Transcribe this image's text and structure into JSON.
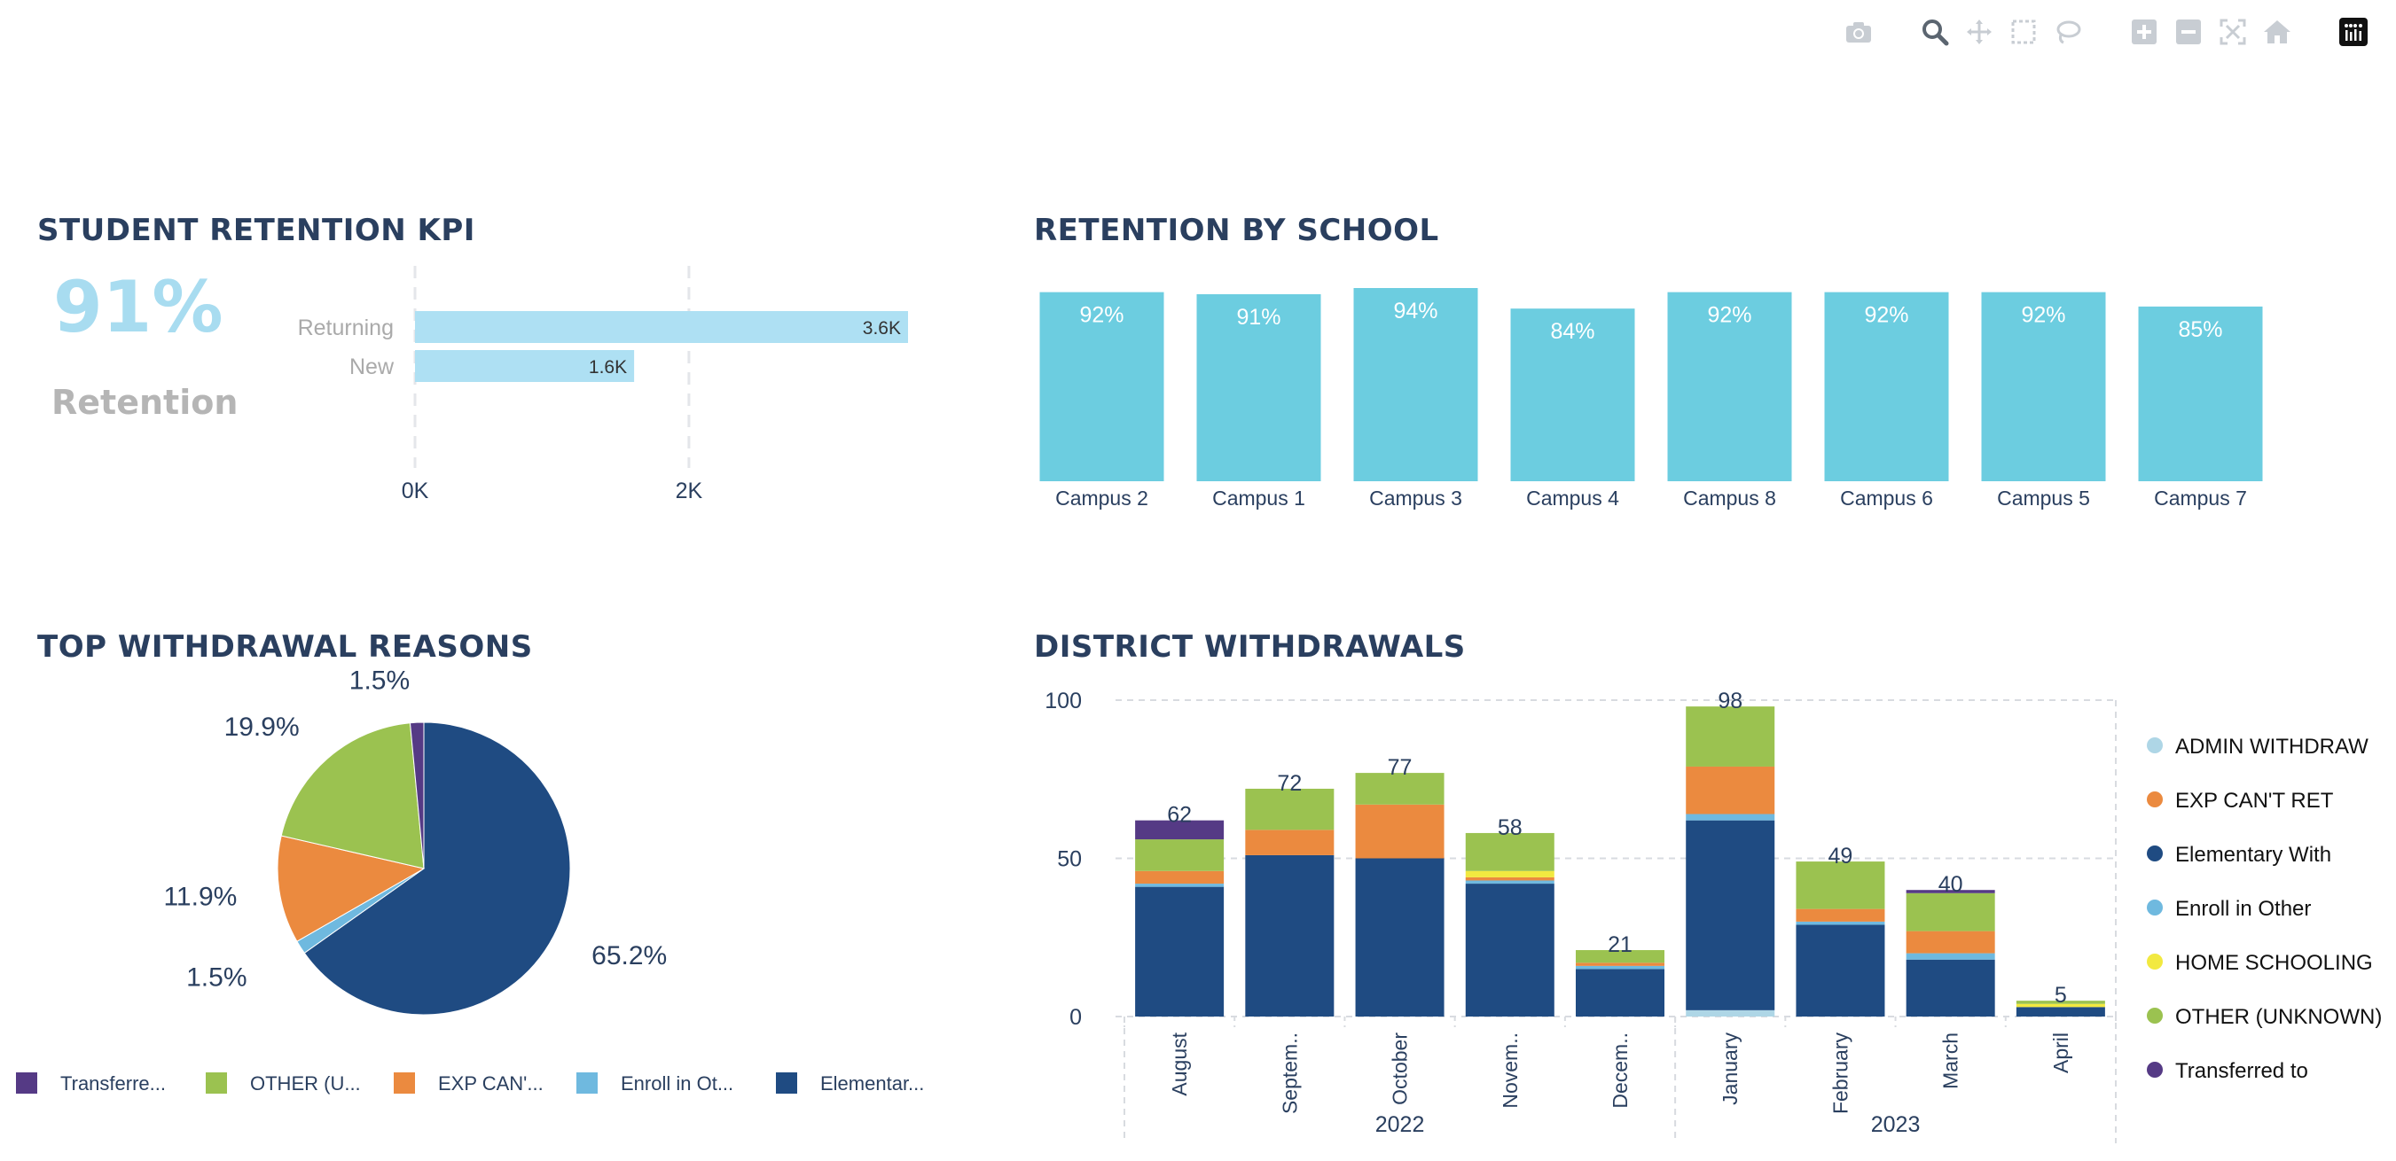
{
  "modebar": {
    "icons": [
      "camera-icon",
      "zoom-icon",
      "pan-icon",
      "box-select-icon",
      "lasso-icon",
      "zoom-in-icon",
      "zoom-out-icon",
      "autoscale-icon",
      "home-icon",
      "plotly-logo-icon"
    ]
  },
  "kpi": {
    "title": "STUDENT RETENTION KPI",
    "big_value": "91%",
    "big_label": "Retention",
    "big_color": "#a8dcf0"
  },
  "school": {
    "title": "RETENTION BY SCHOOL"
  },
  "reasons": {
    "title": "TOP WITHDRAWAL REASONS"
  },
  "district": {
    "title": "DISTRICT WITHDRAWALS"
  },
  "chart_data": [
    {
      "id": "kpi_bars",
      "type": "bar",
      "orientation": "horizontal",
      "categories": [
        "Returning",
        "New"
      ],
      "values": [
        3600,
        1600
      ],
      "text": [
        "3.6K",
        "1.6K"
      ],
      "xlim": [
        0,
        3600
      ],
      "xticks": [
        0,
        2000
      ],
      "xticklabels": [
        "0K",
        "2K"
      ],
      "color": "#aee0f3",
      "grid": true
    },
    {
      "id": "retention_by_school",
      "type": "bar",
      "categories": [
        "Campus 2",
        "Campus 1",
        "Campus 3",
        "Campus 4",
        "Campus 8",
        "Campus 6",
        "Campus 5",
        "Campus 7"
      ],
      "values": [
        92,
        91,
        94,
        84,
        92,
        92,
        92,
        85
      ],
      "text": [
        "92%",
        "91%",
        "94%",
        "84%",
        "92%",
        "92%",
        "92%",
        "85%"
      ],
      "ylim": [
        0,
        94
      ],
      "color": "#6ccde0"
    },
    {
      "id": "withdrawal_reasons",
      "type": "pie",
      "labels": [
        "Transferred to",
        "OTHER (UNKNOWN)",
        "EXP CAN'T RET",
        "Enroll in Other",
        "Elementary With"
      ],
      "legend_labels": [
        "Transferre...",
        "OTHER (U...",
        "EXP CAN'...",
        "Enroll in Ot...",
        "Elementar..."
      ],
      "values": [
        1.5,
        19.9,
        11.9,
        1.5,
        65.2
      ],
      "text": [
        "1.5%",
        "19.9%",
        "11.9%",
        "1.5%",
        "65.2%"
      ],
      "colors": [
        "#553a85",
        "#9bc250",
        "#eb8a3f",
        "#6fb9df",
        "#1f4b82"
      ],
      "legend": "bottom"
    },
    {
      "id": "district_withdrawals",
      "type": "bar",
      "stacked": true,
      "categories": [
        "August",
        "Septem..",
        "October",
        "Novem..",
        "Decem..",
        "January",
        "February",
        "March",
        "April"
      ],
      "groups": [
        {
          "label": "2022",
          "span": [
            0,
            4
          ]
        },
        {
          "label": "2023",
          "span": [
            5,
            8
          ]
        }
      ],
      "ylim": [
        0,
        100
      ],
      "yticks": [
        0,
        50,
        100
      ],
      "totals": [
        62,
        72,
        77,
        58,
        21,
        98,
        49,
        40,
        5
      ],
      "totals_text": [
        "62",
        "72",
        "77",
        "58",
        "21",
        "98",
        "49",
        "40",
        "5"
      ],
      "series": [
        {
          "name": "ADMIN WITHDRAW",
          "color": "#aed6e6",
          "values": [
            0,
            0,
            0,
            0,
            0,
            2,
            0,
            0,
            0
          ]
        },
        {
          "name": "Elementary With",
          "color": "#1f4b82",
          "values": [
            41,
            51,
            50,
            42,
            15,
            60,
            29,
            18,
            3
          ]
        },
        {
          "name": "Enroll in Other",
          "color": "#6fb9df",
          "values": [
            1,
            0,
            0,
            1,
            1,
            2,
            1,
            2,
            0
          ]
        },
        {
          "name": "EXP CAN'T RET",
          "color": "#eb8a3f",
          "values": [
            4,
            8,
            17,
            1,
            1,
            15,
            4,
            7,
            0
          ]
        },
        {
          "name": "HOME SCHOOLING",
          "color": "#f2e940",
          "values": [
            0,
            0,
            0,
            2,
            0,
            0,
            0,
            0,
            1
          ]
        },
        {
          "name": "OTHER (UNKNOWN)",
          "color": "#9bc250",
          "values": [
            10,
            13,
            10,
            12,
            4,
            19,
            15,
            12,
            1
          ]
        },
        {
          "name": "Transferred to",
          "color": "#553a85",
          "values": [
            6,
            0,
            0,
            0,
            0,
            0,
            0,
            1,
            0
          ]
        }
      ],
      "legend_order": [
        "ADMIN WITHDRAW",
        "EXP CAN'T RET",
        "Elementary With",
        "Enroll in Other",
        "HOME SCHOOLING",
        "OTHER (UNKNOWN)",
        "Transferred to"
      ],
      "legend": "right",
      "grid": true
    }
  ]
}
